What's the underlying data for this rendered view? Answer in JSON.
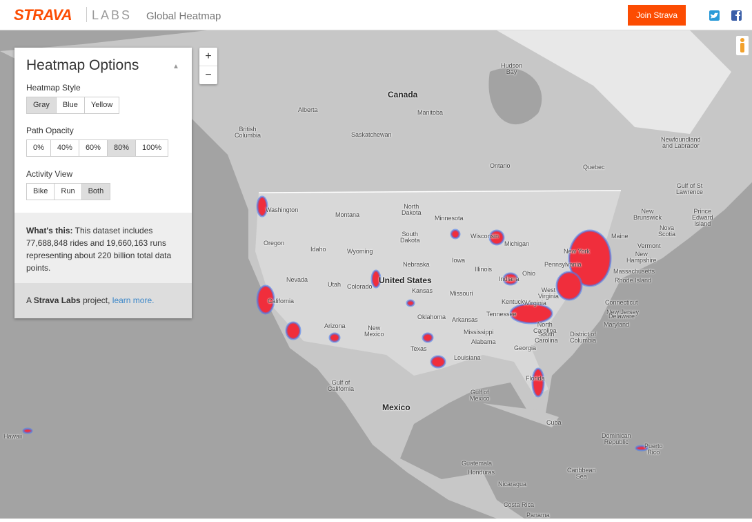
{
  "header": {
    "logo": "STRAVA",
    "labs": "LABS",
    "title": "Global Heatmap",
    "join": "Join Strava"
  },
  "zoom": {
    "in": "+",
    "out": "−"
  },
  "panel": {
    "title": "Heatmap Options",
    "toggle": "▲",
    "sections": [
      {
        "label": "Heatmap Style",
        "options": [
          "Gray",
          "Blue",
          "Yellow"
        ],
        "selected": 0
      },
      {
        "label": "Path Opacity",
        "options": [
          "0%",
          "40%",
          "60%",
          "80%",
          "100%"
        ],
        "selected": 3
      },
      {
        "label": "Activity View",
        "options": [
          "Bike",
          "Run",
          "Both"
        ],
        "selected": 2
      }
    ],
    "info": {
      "lead": "What's this:",
      "text": "This dataset includes 77,688,848 rides and 19,660,163 runs representing about 220 billion total data points."
    },
    "footer": {
      "prefix": "A",
      "brand": "Strava Labs",
      "middle": "project,",
      "link": "learn more."
    }
  },
  "map_labels": [
    "Hudson\nBay",
    "Canada",
    "Alberta",
    "Manitoba",
    "British\nColumbia",
    "Saskatchewan",
    "Newfoundland\nand Labrador",
    "Ontario",
    "Quebec",
    "Gulf of St\nLawrence",
    "Prince\nEdward\nIsland",
    "New\nBrunswick",
    "Nova\nScotia",
    "Maine",
    "Vermont",
    "New\nHampshire",
    "Massachusetts",
    "Rhode Island",
    "Connecticut",
    "New Jersey",
    "Delaware",
    "Maryland",
    "District of\nColumbia",
    "North\nDakota",
    "Minnesota",
    "Washington",
    "Montana",
    "South\nDakota",
    "Wisconsin",
    "Michigan",
    "Oregon",
    "Idaho",
    "Wyoming",
    "Nebraska",
    "Iowa",
    "Illinois",
    "Indiana",
    "Ohio",
    "Pennsylvania",
    "New York",
    "Nevada",
    "Utah",
    "Colorado",
    "United States",
    "Kansas",
    "Missouri",
    "Kentucky",
    "West\nVirginia",
    "Virginia",
    "California",
    "Tennessee",
    "North\nCarolina",
    "Oklahoma",
    "Arkansas",
    "Arizona",
    "New\nMexico",
    "Mississippi",
    "Alabama",
    "Georgia",
    "South\nCarolina",
    "Texas",
    "Louisiana",
    "Florida",
    "Gulf of\nCalifornia",
    "Gulf of\nMexico",
    "Mexico",
    "Cuba",
    "Dominican\nRepublic",
    "Puerto\nRico",
    "Hawaii",
    "Guatemala",
    "Honduras",
    "Caribbean\nSea",
    "Nicaragua",
    "Costa Rica",
    "Panama"
  ]
}
